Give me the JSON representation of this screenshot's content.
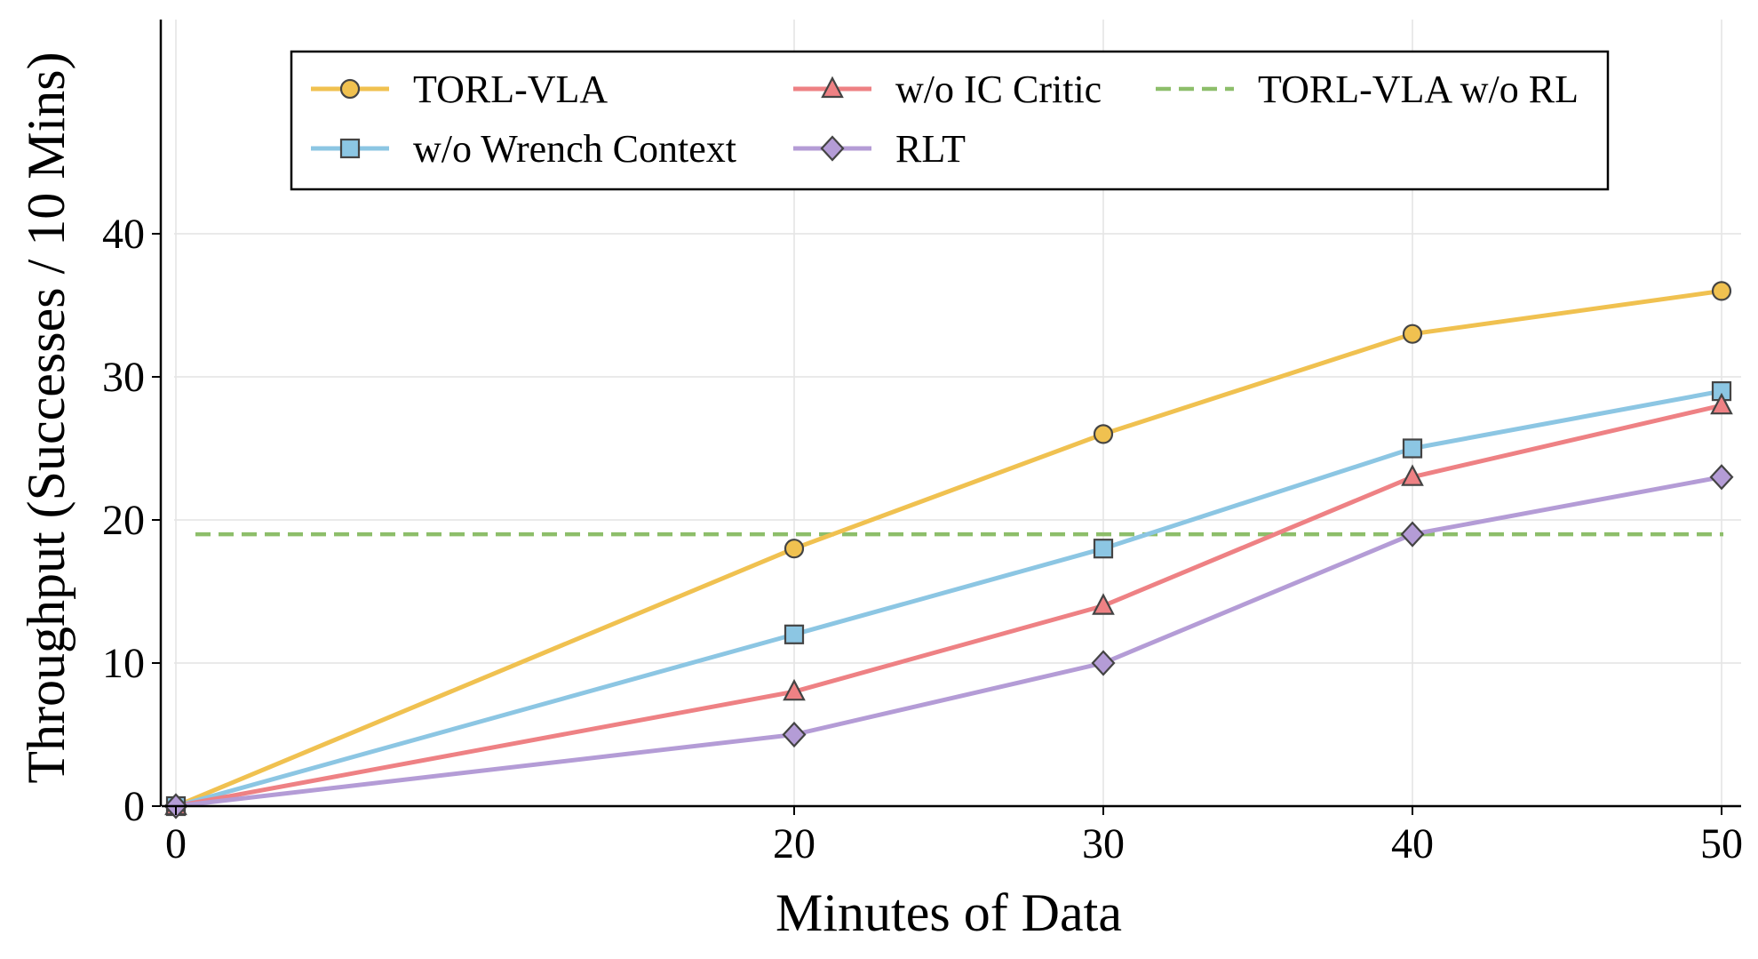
{
  "chart_data": {
    "type": "line",
    "title": "",
    "xlabel": "Minutes of Data",
    "ylabel": "Throughput (Successes / 10 Mins)",
    "x": [
      0,
      20,
      30,
      40,
      50
    ],
    "xticks": [
      "0",
      "20",
      "30",
      "40",
      "50"
    ],
    "yticks": [
      "0",
      "10",
      "20",
      "30",
      "40"
    ],
    "xlim": [
      -0.5,
      50.5
    ],
    "ylim": [
      0,
      48
    ],
    "grid": true,
    "legend_position": "top",
    "series": [
      {
        "name": "TORL-VLA",
        "values": [
          0,
          18,
          26,
          33,
          36
        ],
        "color": "#F0C150",
        "marker": "circle"
      },
      {
        "name": "w/o Wrench Context",
        "values": [
          0,
          12,
          18,
          25,
          29
        ],
        "color": "#8CC6E3",
        "marker": "square"
      },
      {
        "name": "w/o IC Critic",
        "values": [
          0,
          8,
          14,
          23,
          28
        ],
        "color": "#EE8184",
        "marker": "triangle"
      },
      {
        "name": "RLT",
        "values": [
          0,
          5,
          10,
          19,
          23
        ],
        "color": "#B49CD6",
        "marker": "diamond"
      }
    ],
    "reference_lines": [
      {
        "name": "TORL-VLA w/o RL",
        "value": 19,
        "color": "#8DBE6A",
        "style": "dashed"
      }
    ]
  }
}
